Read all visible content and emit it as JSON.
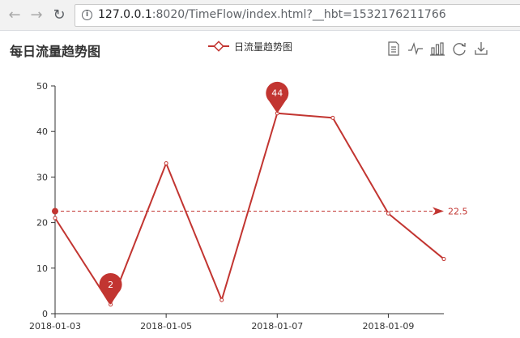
{
  "browser": {
    "back_icon": "arrow-left-icon",
    "forward_icon": "arrow-right-icon",
    "reload_icon": "reload-icon",
    "site_info_icon": "info-icon",
    "url_host": "127.0.0.1",
    "url_rest": ":8020/TimeFlow/index.html?__hbt=1532176211766"
  },
  "chart_title": "每日流量趋势图",
  "legend": {
    "label": "日流量趋势图",
    "color": "#c23531"
  },
  "toolbox": [
    {
      "icon": "data-view-icon"
    },
    {
      "icon": "line-chart-icon"
    },
    {
      "icon": "bar-chart-icon"
    },
    {
      "icon": "restore-icon"
    },
    {
      "icon": "save-image-icon"
    }
  ],
  "chart_data": {
    "type": "line",
    "title": "每日流量趋势图",
    "x": [
      "2018-01-03",
      "2018-01-04",
      "2018-01-05",
      "2018-01-06",
      "2018-01-07",
      "2018-01-08",
      "2018-01-09",
      "2018-01-10"
    ],
    "x_tick_labels": [
      "2018-01-03",
      "2018-01-05",
      "2018-01-07",
      "2018-01-09"
    ],
    "series": [
      {
        "name": "日流量趋势图",
        "values": [
          21,
          2,
          33,
          3,
          44,
          43,
          22,
          12
        ],
        "color": "#c23531"
      }
    ],
    "ylim": [
      0,
      50
    ],
    "y_ticks": [
      0,
      10,
      20,
      30,
      40,
      50
    ],
    "grid": false,
    "legend_position": "top-center",
    "mark_points": [
      {
        "label": "44",
        "x": "2018-01-07",
        "y": 44,
        "kind": "max"
      },
      {
        "label": "2",
        "x": "2018-01-04",
        "y": 2,
        "kind": "min"
      }
    ],
    "mark_line": {
      "label": "22.5",
      "y": 22.5,
      "kind": "average"
    }
  }
}
